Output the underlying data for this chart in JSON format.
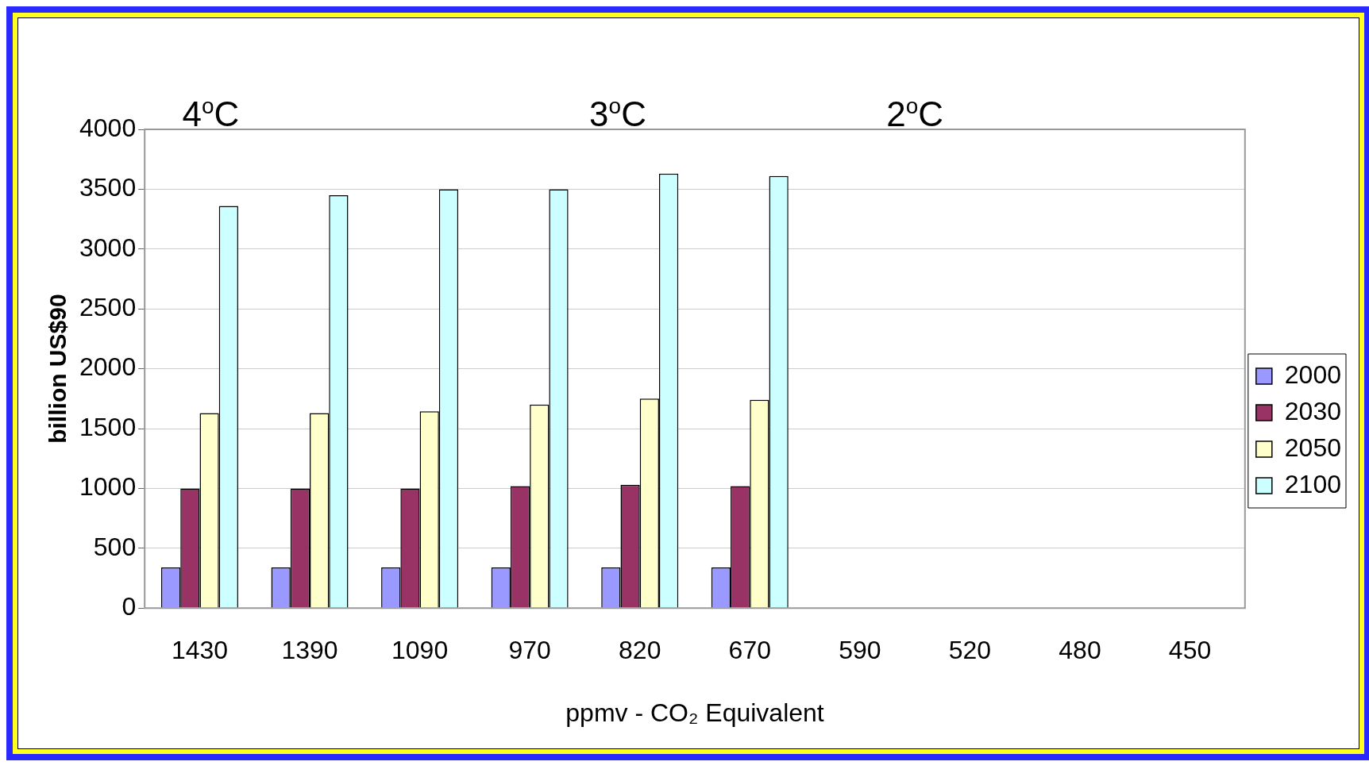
{
  "chart_data": {
    "type": "bar",
    "xlabel": "ppmv - CO₂ Equivalent",
    "ylabel": "billion US$90",
    "categories": [
      "1430",
      "1390",
      "1090",
      "970",
      "820",
      "670",
      "590",
      "520",
      "480",
      "450"
    ],
    "series": [
      {
        "name": "2000",
        "color": "#9999ff",
        "values": [
          340,
          340,
          340,
          340,
          340,
          340,
          null,
          null,
          null,
          null
        ]
      },
      {
        "name": "2030",
        "color": "#993366",
        "values": [
          1000,
          1000,
          1000,
          1020,
          1030,
          1020,
          null,
          null,
          null,
          null
        ]
      },
      {
        "name": "2050",
        "color": "#ffffcc",
        "values": [
          1630,
          1630,
          1645,
          1700,
          1750,
          1740,
          null,
          null,
          null,
          null
        ]
      },
      {
        "name": "2100",
        "color": "#ccffff",
        "values": [
          3360,
          3450,
          3500,
          3500,
          3630,
          3610,
          null,
          null,
          null,
          null
        ]
      }
    ],
    "ylim": [
      0,
      4000
    ],
    "yticks": [
      0,
      500,
      1000,
      1500,
      2000,
      2500,
      3000,
      3500,
      4000
    ],
    "grid": "y",
    "legend": "right",
    "annotations": [
      "4$^{o}$C",
      "3$^{o}$C",
      "2$^{o}$C"
    ]
  }
}
